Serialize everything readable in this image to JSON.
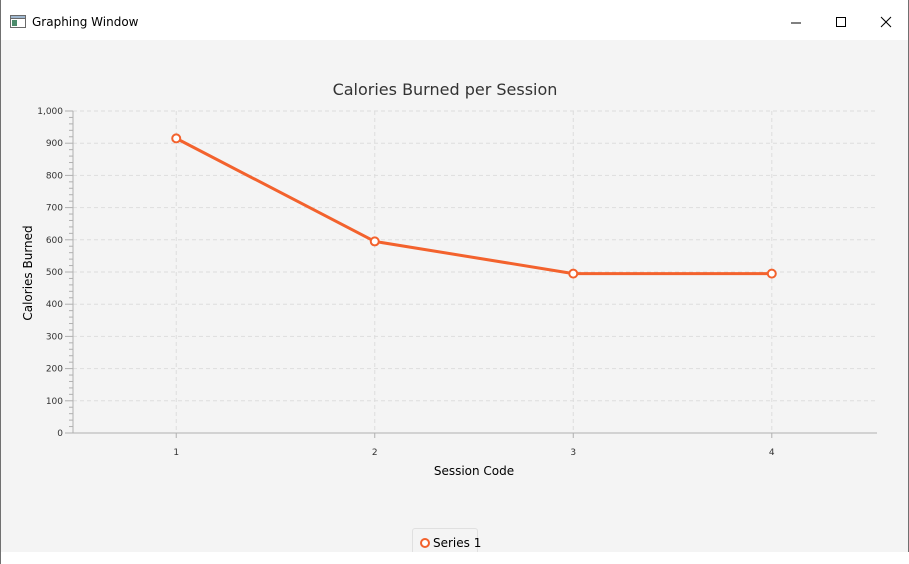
{
  "window": {
    "title": "Graphing Window",
    "icon": "app-window-icon",
    "controls": [
      "minimize-icon",
      "maximize-icon",
      "close-icon"
    ]
  },
  "colors": {
    "series": "#f3622d",
    "plot_bg": "#f4f4f4",
    "grid": "#dddddd",
    "axis": "#b0b0b0"
  },
  "chart_data": {
    "type": "line",
    "title": "Calories Burned per Session",
    "xlabel": "Session Code",
    "ylabel": "Calories Burned",
    "x_ticks": [
      "1",
      "2",
      "3",
      "4"
    ],
    "y_ticks": [
      "0",
      "100",
      "200",
      "300",
      "400",
      "500",
      "600",
      "700",
      "800",
      "900",
      "1,000"
    ],
    "ylim": [
      0,
      1000
    ],
    "grid": true,
    "legend_placement": "bottom-center",
    "series": [
      {
        "name": "Series 1",
        "x": [
          1,
          2,
          3,
          4
        ],
        "values": [
          915,
          595,
          495,
          495
        ]
      }
    ]
  }
}
